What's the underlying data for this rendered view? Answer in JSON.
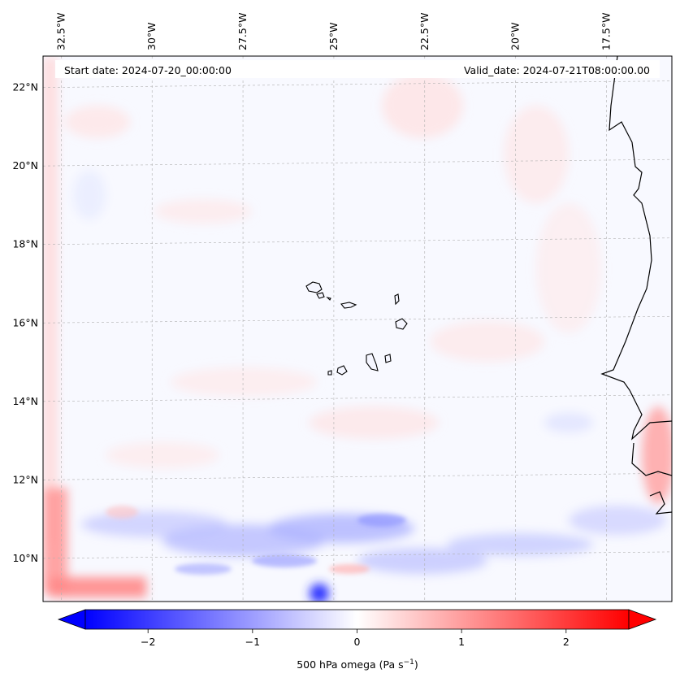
{
  "map": {
    "start_date_label": "Start date: 2024-07-20_00:00:00",
    "valid_date_label": "Valid_date: 2024-07-21T08:00:00.00",
    "lon_labels": [
      {
        "lon": -32.5,
        "text": "32.5°W"
      },
      {
        "lon": -30.0,
        "text": "30°W"
      },
      {
        "lon": -27.5,
        "text": "27.5°W"
      },
      {
        "lon": -25.0,
        "text": "25°W"
      },
      {
        "lon": -22.5,
        "text": "22.5°W"
      },
      {
        "lon": -20.0,
        "text": "20°W"
      },
      {
        "lon": -17.5,
        "text": "17.5°W"
      }
    ],
    "lat_labels": [
      {
        "lat": 22,
        "text": "22°N"
      },
      {
        "lat": 20,
        "text": "20°N"
      },
      {
        "lat": 18,
        "text": "18°N"
      },
      {
        "lat": 16,
        "text": "16°N"
      },
      {
        "lat": 14,
        "text": "14°N"
      },
      {
        "lat": 12,
        "text": "12°N"
      },
      {
        "lat": 10,
        "text": "10°N"
      }
    ],
    "lon_range": [
      -33.0,
      -15.7
    ],
    "lat_range": [
      8.9,
      22.8
    ]
  },
  "colorbar": {
    "label_main": "500 hPa omega (Pa s",
    "label_sup": "−1",
    "label_end": ")",
    "range": [
      -2.6,
      2.6
    ],
    "ticks": [
      {
        "value": -2,
        "text": "−2"
      },
      {
        "value": -1,
        "text": "−1"
      },
      {
        "value": 0,
        "text": "0"
      },
      {
        "value": 1,
        "text": "1"
      },
      {
        "value": 2,
        "text": "2"
      }
    ],
    "colors": {
      "min": "#0000ff",
      "mid": "#ffffff",
      "max": "#ff0000"
    },
    "extend": "both"
  },
  "colors": {
    "coastline": "#000000",
    "gridline": "#b0b0b0",
    "field_background": "#f8f9ff"
  }
}
